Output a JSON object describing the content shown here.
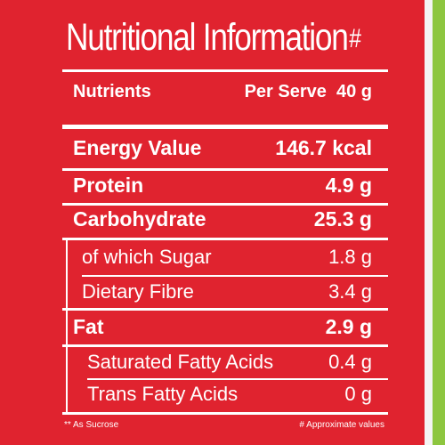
{
  "title": "Nutritional Information",
  "title_suffix": "#",
  "header": {
    "nutrients": "Nutrients",
    "per_serve": "Per Serve  40 g"
  },
  "rows": [
    {
      "label": "Energy Value",
      "value": "146.7 kcal"
    },
    {
      "label": "Protein",
      "value": "4.9 g"
    },
    {
      "label": "Carbohydrate",
      "value": "25.3 g"
    },
    {
      "label": "of which Sugar",
      "value": "1.8 g"
    },
    {
      "label": "Dietary Fibre",
      "value": "3.4 g"
    },
    {
      "label": "Fat",
      "value": "2.9 g"
    },
    {
      "label": "Saturated Fatty Acids",
      "value": "0.4 g"
    },
    {
      "label": "Trans Fatty Acids",
      "value": "0 g"
    }
  ],
  "footnotes": {
    "left": "** As Sucrose",
    "right": "# Approximate values"
  },
  "colors": {
    "panel": "#e0232f",
    "edge": "#8dc63f",
    "text": "#ffffff"
  }
}
